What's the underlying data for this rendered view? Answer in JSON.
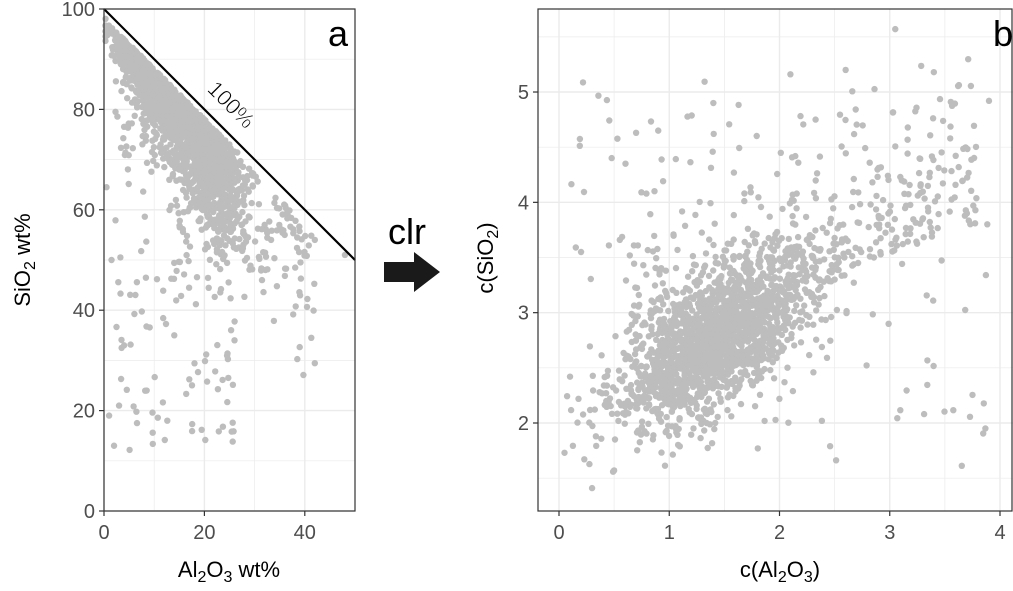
{
  "transform_label": "clr",
  "colors": {
    "points": "#bdbdbd",
    "grid": "#ebebeb",
    "axis": "#4d4d4d",
    "ink": "#000000",
    "arrow": "#1a1a1a"
  },
  "chart_data": [
    {
      "type": "scatter",
      "panel_label": "a",
      "xlabel": {
        "main": "Al",
        "sub1": "2",
        "mid": "O",
        "sub2": "3",
        "tail": " wt%"
      },
      "ylabel": {
        "main": "SiO",
        "sub": "2",
        "tail": " wt%"
      },
      "xlim": [
        0,
        50
      ],
      "ylim": [
        0,
        100
      ],
      "xticks": [
        0,
        20,
        40
      ],
      "yticks": [
        0,
        20,
        40,
        60,
        80,
        100
      ],
      "grid": true,
      "reference_line": {
        "label": "100%",
        "x": [
          0,
          50
        ],
        "y": [
          100,
          50
        ]
      },
      "point_count": 2200,
      "sample_points": [
        [
          2.5,
          95
        ],
        [
          4.0,
          92
        ],
        [
          6.0,
          88
        ],
        [
          8.0,
          84
        ],
        [
          10.0,
          78
        ],
        [
          12.0,
          74
        ],
        [
          15.0,
          68
        ],
        [
          18.0,
          64
        ],
        [
          20.0,
          60
        ],
        [
          22.0,
          58
        ],
        [
          25.0,
          56
        ],
        [
          28.0,
          55
        ],
        [
          32.0,
          57
        ],
        [
          36.0,
          55
        ],
        [
          42.0,
          54
        ],
        [
          48.0,
          51
        ],
        [
          2.0,
          13
        ],
        [
          3.0,
          21
        ],
        [
          8.5,
          24
        ],
        [
          4.0,
          33
        ],
        [
          14.0,
          35
        ],
        [
          26.0,
          34
        ],
        [
          0.5,
          64.5
        ],
        [
          1.5,
          50
        ]
      ]
    },
    {
      "type": "scatter",
      "panel_label": "b",
      "xlabel": {
        "pre": "c(Al",
        "sub1": "2",
        "mid": "O",
        "sub2": "3",
        "tail": ")"
      },
      "ylabel": {
        "pre": "c(SiO",
        "sub": "2",
        "tail": ")"
      },
      "xlim": [
        -0.2,
        4.1
      ],
      "ylim": [
        1.3,
        5.75
      ],
      "xticks": [
        0,
        1,
        2,
        3,
        4
      ],
      "yticks": [
        2,
        3,
        4,
        5
      ],
      "grid": true,
      "point_count": 2200,
      "sample_points": [
        [
          0.05,
          1.73
        ],
        [
          0.1,
          2.42
        ],
        [
          0.3,
          1.41
        ],
        [
          0.5,
          1.57
        ],
        [
          3.05,
          5.57
        ],
        [
          2.6,
          5.2
        ],
        [
          3.9,
          4.92
        ],
        [
          3.4,
          5.18
        ],
        [
          1.2,
          2.6
        ],
        [
          1.5,
          2.8
        ],
        [
          2.0,
          3.0
        ],
        [
          2.5,
          3.3
        ],
        [
          0.9,
          4.65
        ],
        [
          1.4,
          4.9
        ],
        [
          0.2,
          3.55
        ],
        [
          3.7,
          3.9
        ]
      ]
    }
  ]
}
